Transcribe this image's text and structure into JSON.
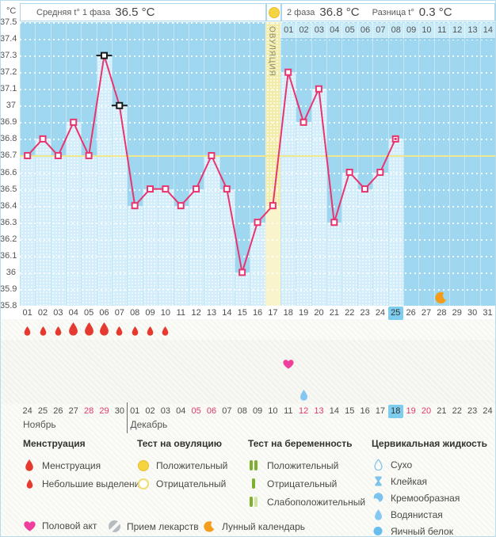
{
  "header": {
    "unit_label": "°C",
    "phase1_label": "Средняя t° 1 фаза",
    "phase1_value": "36.5 °C",
    "phase2_label": "2 фаза",
    "phase2_value": "36.8 °C",
    "diff_label": "Разница t°",
    "diff_value": "0.3 °C",
    "ovulation_test_positive_day": 17
  },
  "chart_data": {
    "type": "line",
    "title": "График базальной температуры (цикл)",
    "ylabel": "°C",
    "ylim": [
      35.8,
      37.5
    ],
    "yticks": [
      "37.5",
      "37.4",
      "37.3",
      "37.2",
      "37.1",
      "37",
      "36.9",
      "36.8",
      "36.7",
      "36.6",
      "36.5",
      "36.4",
      "36.3",
      "36.2",
      "36.1",
      "36",
      "35.9",
      "35.8"
    ],
    "day_labels": [
      "01",
      "02",
      "03",
      "04",
      "05",
      "06",
      "07",
      "08",
      "09",
      "10",
      "11",
      "12",
      "13",
      "14",
      "15",
      "16",
      "17",
      "18",
      "19",
      "20",
      "21",
      "22",
      "23",
      "24",
      "25",
      "26",
      "27",
      "28",
      "29",
      "30",
      "31"
    ],
    "points": [
      {
        "day": 1,
        "temp": 36.7
      },
      {
        "day": 2,
        "temp": 36.8
      },
      {
        "day": 3,
        "temp": 36.7
      },
      {
        "day": 4,
        "temp": 36.9
      },
      {
        "day": 5,
        "temp": 36.7
      },
      {
        "day": 6,
        "temp": 37.3,
        "excluded": true
      },
      {
        "day": 7,
        "temp": 37.0,
        "excluded": true
      },
      {
        "day": 8,
        "temp": 36.4
      },
      {
        "day": 9,
        "temp": 36.5
      },
      {
        "day": 10,
        "temp": 36.5
      },
      {
        "day": 11,
        "temp": 36.4
      },
      {
        "day": 12,
        "temp": 36.5
      },
      {
        "day": 13,
        "temp": 36.7
      },
      {
        "day": 14,
        "temp": 36.5
      },
      {
        "day": 15,
        "temp": 36.0
      },
      {
        "day": 16,
        "temp": 36.3
      },
      {
        "day": 17,
        "temp": 36.4
      },
      {
        "day": 18,
        "temp": 37.2
      },
      {
        "day": 19,
        "temp": 36.9
      },
      {
        "day": 20,
        "temp": 37.1
      },
      {
        "day": 21,
        "temp": 36.3
      },
      {
        "day": 22,
        "temp": 36.6
      },
      {
        "day": 23,
        "temp": 36.5
      },
      {
        "day": 24,
        "temp": 36.6
      },
      {
        "day": 25,
        "temp": 36.8,
        "today": true
      }
    ],
    "excluded_days": [
      6,
      7
    ],
    "today_day": 25,
    "coverline": 36.7,
    "ovulation_day": 17,
    "ovulation_label": "ОВУЛЯЦИЯ",
    "dpo_labels": [
      "01",
      "02",
      "03",
      "04",
      "05",
      "06",
      "07",
      "08",
      "09",
      "10",
      "11",
      "12",
      "13",
      "14"
    ],
    "moon_day": 28,
    "grid": true,
    "legend_position": "bottom"
  },
  "events": {
    "menstruation": [
      {
        "day": 1,
        "size": "small"
      },
      {
        "day": 2,
        "size": "small"
      },
      {
        "day": 3,
        "size": "small"
      },
      {
        "day": 4,
        "size": "large"
      },
      {
        "day": 5,
        "size": "large"
      },
      {
        "day": 6,
        "size": "large"
      },
      {
        "day": 7,
        "size": "small"
      },
      {
        "day": 8,
        "size": "small"
      },
      {
        "day": 9,
        "size": "small"
      },
      {
        "day": 10,
        "size": "small"
      }
    ],
    "intercourse_days": [
      18
    ],
    "cervical_fluid": [
      {
        "day": 19,
        "type": "watery"
      }
    ]
  },
  "dates_row": {
    "dates": [
      {
        "t": "24"
      },
      {
        "t": "25"
      },
      {
        "t": "26"
      },
      {
        "t": "27"
      },
      {
        "t": "28",
        "red": true
      },
      {
        "t": "29",
        "red": true
      },
      {
        "t": "30"
      },
      {
        "t": "01"
      },
      {
        "t": "02"
      },
      {
        "t": "03"
      },
      {
        "t": "04"
      },
      {
        "t": "05",
        "red": true
      },
      {
        "t": "06",
        "red": true
      },
      {
        "t": "07"
      },
      {
        "t": "08"
      },
      {
        "t": "09"
      },
      {
        "t": "10"
      },
      {
        "t": "11"
      },
      {
        "t": "12",
        "red": true
      },
      {
        "t": "13",
        "red": true
      },
      {
        "t": "14"
      },
      {
        "t": "15"
      },
      {
        "t": "16"
      },
      {
        "t": "17"
      },
      {
        "t": "18",
        "today": true
      },
      {
        "t": "19",
        "red": true
      },
      {
        "t": "20",
        "red": true
      },
      {
        "t": "21"
      },
      {
        "t": "22"
      },
      {
        "t": "23"
      },
      {
        "t": "24"
      }
    ],
    "months": [
      {
        "name": "Ноябрь",
        "col": 1
      },
      {
        "name": "Декабрь",
        "col": 8
      }
    ]
  },
  "legend": {
    "groups": [
      {
        "title": "Менструация",
        "items": [
          {
            "icon": "drop-large",
            "label": "Менструация"
          },
          {
            "icon": "drop-small",
            "label": "Небольшие выделения"
          }
        ]
      },
      {
        "title": "Тест на овуляцию",
        "items": [
          {
            "icon": "circle-filled",
            "label": "Положительный"
          },
          {
            "icon": "circle-outline",
            "label": "Отрицательный"
          }
        ]
      },
      {
        "title": "Тест на беременность",
        "items": [
          {
            "icon": "bars-two",
            "label": "Положительный"
          },
          {
            "icon": "bar-one",
            "label": "Отрицательный"
          },
          {
            "icon": "bars-weak",
            "label": "Слабоположительный"
          }
        ]
      },
      {
        "title": "Цервикальная жидкость",
        "items": [
          {
            "icon": "fluid-dry",
            "label": "Сухо"
          },
          {
            "icon": "fluid-sticky",
            "label": "Клейкая"
          },
          {
            "icon": "fluid-creamy",
            "label": "Кремообразная"
          },
          {
            "icon": "fluid-watery",
            "label": "Водянистая"
          },
          {
            "icon": "fluid-eggwhite",
            "label": "Яичный белок"
          }
        ]
      }
    ],
    "extra": [
      {
        "icon": "heart",
        "label": "Половой акт"
      },
      {
        "icon": "pill",
        "label": "Прием лекарств"
      },
      {
        "icon": "moon",
        "label": "Лунный календарь"
      }
    ]
  },
  "colors": {
    "line": "#e7356f",
    "chart_bg": "#9ed7ef",
    "bar": "#d4edfa",
    "ovulation_band": "#f2ecaa",
    "ovulation_bar": "#f9f4cc",
    "coverline": "#efe88f",
    "dpo_bg": "#c9eaf7",
    "highlight": "#7ecdee",
    "weekend_red": "#e23a66",
    "menstruation": "#e6392f",
    "heart": "#ef3f9d",
    "fluid": "#7cc3ee",
    "moon": "#f49d1d",
    "pregnancy_positive": "#7eb02f",
    "pregnancy_weak": "#cfe49e",
    "ovulation_test": "#f6d33f"
  }
}
